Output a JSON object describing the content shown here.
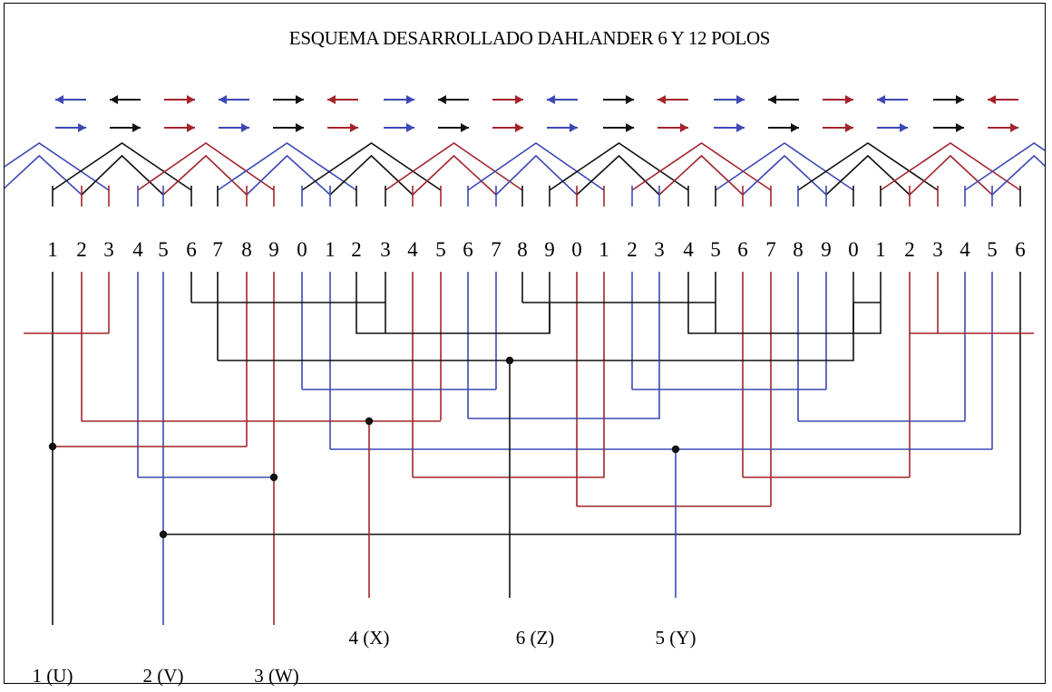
{
  "title": "ESQUEMA DESARROLLADO DAHLANDER 6 Y 12 POLOS",
  "colors": {
    "black": "#111111",
    "red": "#a3242c",
    "blue": "#3c48b4"
  },
  "slot_numbers": [
    "1",
    "2",
    "3",
    "4",
    "5",
    "6",
    "7",
    "8",
    "9",
    "0",
    "1",
    "2",
    "3",
    "4",
    "5",
    "6",
    "7",
    "8",
    "9",
    "0",
    "1",
    "2",
    "3",
    "4",
    "5",
    "6",
    "7",
    "8",
    "9",
    "0",
    "1",
    "2",
    "3",
    "4",
    "5",
    "6"
  ],
  "arrow_row_top": [
    "blue-left",
    "black-left",
    "red-right",
    "blue-left",
    "black-right",
    "red-left",
    "blue-right",
    "black-left",
    "red-right",
    "blue-left",
    "black-right",
    "red-left",
    "blue-right",
    "black-left",
    "red-right",
    "blue-left",
    "black-right",
    "red-left"
  ],
  "arrow_row_bottom": [
    "blue-right",
    "black-right",
    "red-right",
    "blue-right",
    "black-right",
    "red-right",
    "blue-right",
    "black-right",
    "red-right",
    "blue-right",
    "black-right",
    "red-right",
    "blue-right",
    "black-right",
    "red-right",
    "blue-right",
    "black-right",
    "red-right"
  ],
  "terminals": [
    {
      "label": "1 (U)",
      "color": "black"
    },
    {
      "label": "2 (V)",
      "color": "blue"
    },
    {
      "label": "3 (W)",
      "color": "red"
    },
    {
      "label": "4 (X)",
      "color": "red"
    },
    {
      "label": "6 (Z)",
      "color": "black"
    },
    {
      "label": "5 (Y)",
      "color": "blue"
    }
  ]
}
